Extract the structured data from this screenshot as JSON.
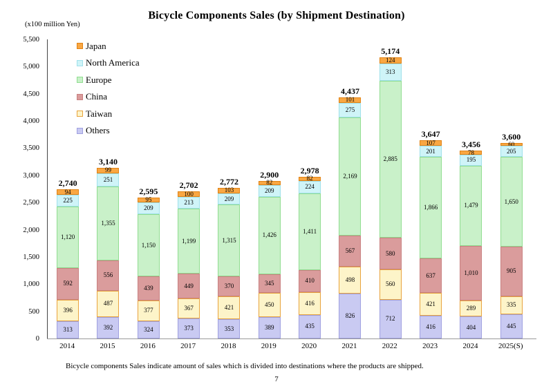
{
  "page": {
    "footnote": "Bicycle components Sales indicate amount of sales which is divided into destinations where the products are shipped.",
    "page_number": "7"
  },
  "chart_data": {
    "type": "bar",
    "subtype": "stacked",
    "title": "Bicycle Components Sales (by Shipment Destination)",
    "unit_label": "(x100 million Yen)",
    "xlabel": "",
    "ylabel": "(x100 million Yen)",
    "ylim": [
      0,
      5500
    ],
    "ytick_step": 500,
    "grid": false,
    "legend_position": "upper-left",
    "legend": [
      "Japan",
      "North America",
      "Europe",
      "China",
      "Taiwan",
      "Others"
    ],
    "categories": [
      "2014",
      "2015",
      "2016",
      "2017",
      "2018",
      "2019",
      "2020",
      "2021",
      "2022",
      "2023",
      "2024",
      "2025(S)"
    ],
    "totals": [
      2740,
      3140,
      2595,
      2702,
      2772,
      2900,
      2978,
      4437,
      5174,
      3647,
      3456,
      3600
    ],
    "series": [
      {
        "name": "Others",
        "fill": "#c9caf2",
        "border": "#9fa0e0",
        "values": [
          313,
          392,
          324,
          373,
          353,
          389,
          435,
          826,
          712,
          416,
          404,
          445
        ]
      },
      {
        "name": "Taiwan",
        "fill": "#fdf4c9",
        "border": "#e8a33d",
        "values": [
          396,
          487,
          377,
          367,
          421,
          450,
          416,
          498,
          560,
          421,
          289,
          335
        ]
      },
      {
        "name": "China",
        "fill": "#da9c9c",
        "border": "#c88080",
        "values": [
          592,
          556,
          439,
          449,
          370,
          345,
          410,
          567,
          580,
          637,
          1010,
          905
        ]
      },
      {
        "name": "Europe",
        "fill": "#c9f1c9",
        "border": "#90dd90",
        "values": [
          1120,
          1355,
          1150,
          1199,
          1315,
          1426,
          1411,
          2169,
          2885,
          1866,
          1479,
          1650
        ]
      },
      {
        "name": "North America",
        "fill": "#cff4f8",
        "border": "#9fe0ea",
        "values": [
          225,
          251,
          209,
          213,
          209,
          209,
          224,
          275,
          313,
          201,
          195,
          205
        ]
      },
      {
        "name": "Japan",
        "fill": "#f9a743",
        "border": "#e08214",
        "values": [
          94,
          99,
          95,
          100,
          103,
          82,
          82,
          101,
          124,
          107,
          78,
          60
        ]
      }
    ]
  }
}
